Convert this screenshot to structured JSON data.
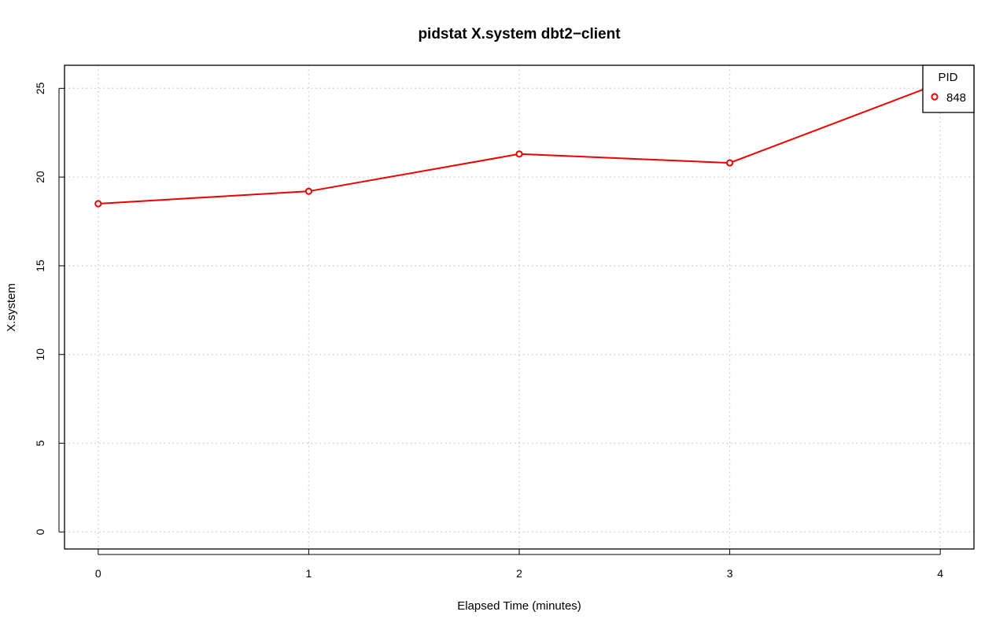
{
  "chart_data": {
    "type": "line",
    "title": "pidstat X.system dbt2−client",
    "xlabel": "Elapsed Time (minutes)",
    "ylabel": "X.system",
    "xlim": [
      -0.16,
      4.16
    ],
    "ylim": [
      -0.96,
      26.3
    ],
    "x_ticks": [
      0,
      1,
      2,
      3,
      4
    ],
    "y_ticks": [
      0,
      5,
      10,
      15,
      20,
      25
    ],
    "grid": true,
    "legend": {
      "title": "PID",
      "position": "top-right"
    },
    "series": [
      {
        "name": "848",
        "color": "#ee0000",
        "x": [
          0,
          1,
          2,
          3,
          4
        ],
        "y": [
          18.5,
          19.2,
          21.3,
          20.8,
          25.3
        ]
      }
    ]
  }
}
